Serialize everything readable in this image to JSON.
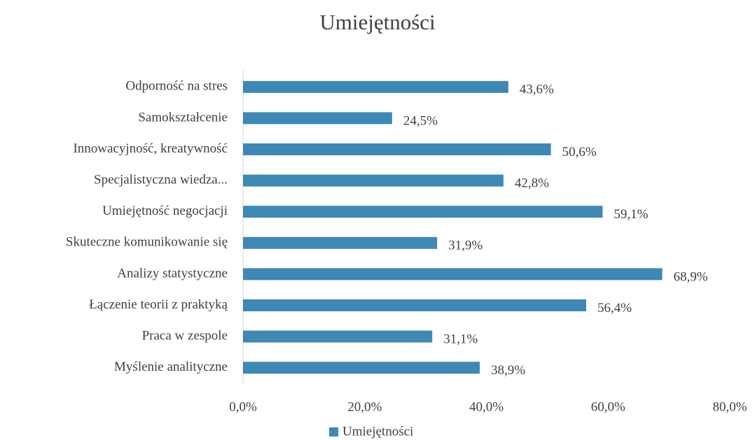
{
  "chart_data": {
    "type": "bar",
    "orientation": "horizontal",
    "title": "Umiejętności",
    "categories": [
      "Odporność na stres",
      "Samokształcenie",
      "Innowacyjność, kreatywność",
      "Specjalistyczna wiedza...",
      "Umiejętność negocjacji",
      "Skuteczne komunikowanie się",
      "Analizy statystyczne",
      "Łączenie teorii z praktyką",
      "Praca w zespole",
      "Myślenie analityczne"
    ],
    "series": [
      {
        "name": "Umiejętności",
        "color": "#3e88b5",
        "values": [
          43.6,
          24.5,
          50.6,
          42.8,
          59.1,
          31.9,
          68.9,
          56.4,
          31.1,
          38.9
        ],
        "value_labels": [
          "43,6%",
          "24,5%",
          "50,6%",
          "42,8%",
          "59,1%",
          "31,9%",
          "68,9%",
          "56,4%",
          "31,1%",
          "38,9%"
        ]
      }
    ],
    "xlim": [
      0,
      80
    ],
    "xticks": [
      {
        "value": 0,
        "label": "0,0%"
      },
      {
        "value": 20,
        "label": "20,0%"
      },
      {
        "value": 40,
        "label": "40,0%"
      },
      {
        "value": 60,
        "label": "60,0%"
      },
      {
        "value": 80,
        "label": "80,0%"
      }
    ],
    "legend": "bottom"
  }
}
